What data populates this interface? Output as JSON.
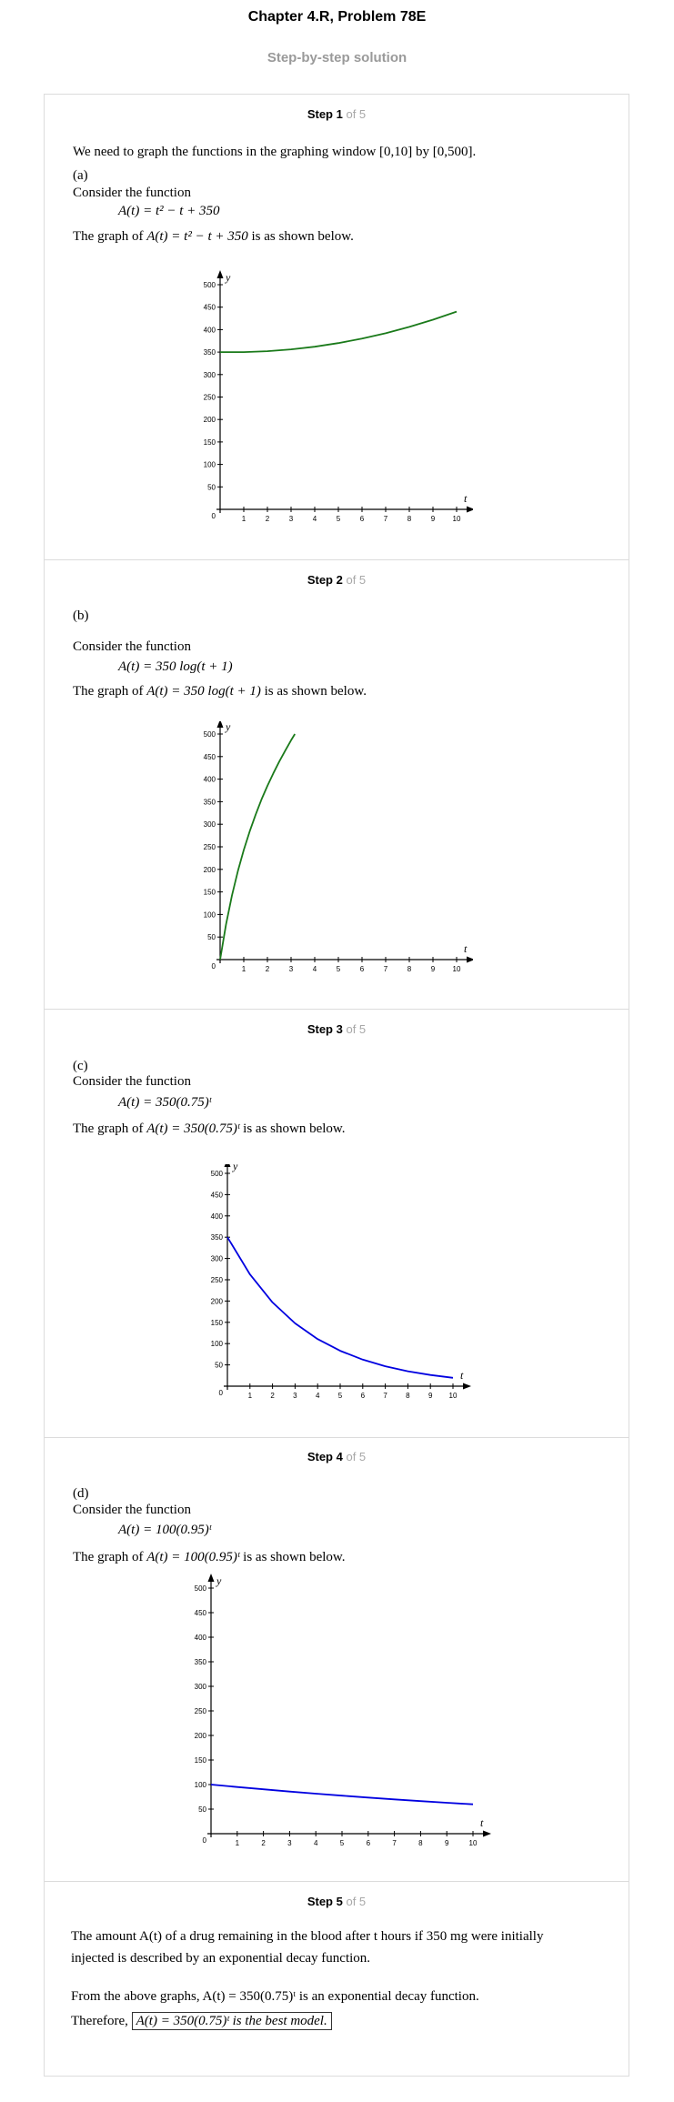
{
  "header": {
    "title": "Chapter 4.R, Problem 78E",
    "subtitle": "Step-by-step solution"
  },
  "of_total": "of 5",
  "steps": [
    {
      "label": "Step 1",
      "intro": "We need to graph the functions in the graphing window [0,10] by [0,500].",
      "part": "(a)",
      "consider": "Consider the function",
      "formula": "A(t) = t² − t + 350",
      "graph_text_pre": "The graph of",
      "graph_formula": "A(t) = t² − t + 350",
      "graph_text_post": "is as shown below."
    },
    {
      "label": "Step 2",
      "part": "(b)",
      "consider": "Consider the function",
      "formula": "A(t) = 350 log(t + 1)",
      "graph_text_pre": "The graph of",
      "graph_formula": "A(t) = 350 log(t + 1)",
      "graph_text_post": "is as shown below."
    },
    {
      "label": "Step 3",
      "part": "(c)",
      "consider": "Consider the function",
      "formula": "A(t) = 350(0.75)ᵗ",
      "graph_text_pre": "The graph of",
      "graph_formula": "A(t) = 350(0.75)ᵗ",
      "graph_text_post": "is as shown below."
    },
    {
      "label": "Step 4",
      "part": "(d)",
      "consider": "Consider the function",
      "formula": "A(t) = 100(0.95)ᵗ",
      "graph_text_pre": "The graph of",
      "graph_formula": "A(t) = 100(0.95)ᵗ",
      "graph_text_post": "is as shown below."
    },
    {
      "label": "Step 5",
      "line1": "The amount  A(t) of a drug remaining in the blood after  t  hours if 350 mg were initially",
      "line2": "injected is described by an exponential decay function.",
      "line3": "From the above graphs,  A(t) = 350(0.75)ᵗ  is an exponential decay function.",
      "line4_pre": "Therefore,",
      "line4_box": "A(t) = 350(0.75)ᵗ is the best model."
    }
  ],
  "axes": {
    "x_name": "t",
    "y_name": "y",
    "origin": "0",
    "x_ticks": [
      "1",
      "2",
      "3",
      "4",
      "5",
      "6",
      "7",
      "8",
      "9",
      "10"
    ],
    "y_ticks": [
      "50",
      "100",
      "150",
      "200",
      "250",
      "300",
      "350",
      "400",
      "450",
      "500"
    ]
  },
  "chart_data": [
    {
      "type": "line",
      "series": [
        {
          "x": [
            0,
            1,
            2,
            3,
            4,
            5,
            6,
            7,
            8,
            9,
            10
          ],
          "values": [
            350,
            350,
            352,
            356,
            362,
            370,
            380,
            392,
            406,
            422,
            440
          ],
          "color": "#1a7a1a"
        }
      ],
      "xlabel": "t",
      "ylabel": "y",
      "xlim": [
        0,
        10
      ],
      "ylim": [
        0,
        500
      ],
      "grid": false
    },
    {
      "type": "line",
      "series": [
        {
          "x": [
            0,
            0.25,
            0.5,
            0.75,
            1,
            1.25,
            1.5,
            1.75,
            2,
            2.25,
            2.5,
            2.75,
            3,
            3.16
          ],
          "values": [
            0,
            78,
            142,
            196,
            243,
            284,
            321,
            355,
            385,
            413,
            439,
            463,
            486,
            500
          ],
          "color": "#1a7a1a"
        }
      ],
      "xlabel": "t",
      "ylabel": "y",
      "xlim": [
        0,
        10
      ],
      "ylim": [
        0,
        500
      ],
      "grid": false
    },
    {
      "type": "line",
      "series": [
        {
          "x": [
            0,
            1,
            2,
            3,
            4,
            5,
            6,
            7,
            8,
            9,
            10
          ],
          "values": [
            350,
            262.5,
            196.9,
            147.7,
            110.7,
            83.1,
            62.3,
            46.7,
            35.0,
            26.3,
            19.7
          ],
          "color": "#0000e0"
        }
      ],
      "xlabel": "t",
      "ylabel": "y",
      "xlim": [
        0,
        10
      ],
      "ylim": [
        0,
        500
      ],
      "grid": false
    },
    {
      "type": "line",
      "series": [
        {
          "x": [
            0,
            1,
            2,
            3,
            4,
            5,
            6,
            7,
            8,
            9,
            10
          ],
          "values": [
            100,
            95,
            90.3,
            85.7,
            81.5,
            77.4,
            73.5,
            69.8,
            66.3,
            63.0,
            59.9
          ],
          "color": "#0000e0"
        }
      ],
      "xlabel": "t",
      "ylabel": "y",
      "xlim": [
        0,
        10
      ],
      "ylim": [
        0,
        500
      ],
      "grid": false
    }
  ]
}
